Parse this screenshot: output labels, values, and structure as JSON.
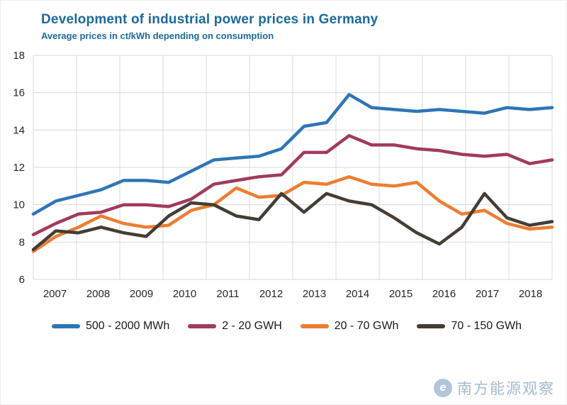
{
  "header": {
    "title": "Development of industrial power prices in Germany",
    "subtitle": "Average prices in ct/kWh depending on consumption"
  },
  "colors": {
    "title": "#1b6a9a",
    "grid": "#d9d9d9",
    "axis_text": "#262626"
  },
  "watermark": {
    "text": "南方能源观察"
  },
  "chart_data": {
    "type": "line",
    "title": "Development of industrial power prices in Germany",
    "subtitle": "Average prices in ct/kWh depending on consumption",
    "x_unit": "half-year intervals, 2007–2018",
    "x_tick_labels": [
      "2007",
      "2008",
      "2009",
      "2010",
      "2011",
      "2012",
      "2013",
      "2014",
      "2015",
      "2016",
      "2017",
      "2018"
    ],
    "ylim": [
      6,
      18
    ],
    "y_ticks": [
      6,
      8,
      10,
      12,
      14,
      16,
      18
    ],
    "grid": true,
    "legend_position": "bottom",
    "series": [
      {
        "name": "500 - 2000 MWh",
        "color": "#2e75b6",
        "values": [
          9.5,
          10.2,
          10.5,
          10.8,
          11.3,
          11.3,
          11.2,
          11.8,
          12.4,
          12.5,
          12.6,
          13.0,
          14.2,
          14.4,
          15.9,
          15.2,
          15.1,
          15.0,
          15.1,
          15.0,
          14.9,
          15.2,
          15.1,
          15.2
        ]
      },
      {
        "name": "2 - 20 GWH",
        "color": "#a13a5e",
        "values": [
          8.4,
          9.0,
          9.5,
          9.6,
          10.0,
          10.0,
          9.9,
          10.3,
          11.1,
          11.3,
          11.5,
          11.6,
          12.8,
          12.8,
          13.7,
          13.2,
          13.2,
          13.0,
          12.9,
          12.7,
          12.6,
          12.7,
          12.2,
          12.4
        ]
      },
      {
        "name": "20 - 70 GWh",
        "color": "#ed7d31",
        "values": [
          7.5,
          8.3,
          8.8,
          9.4,
          9.0,
          8.8,
          8.9,
          9.7,
          10.0,
          10.9,
          10.4,
          10.5,
          11.2,
          11.1,
          11.5,
          11.1,
          11.0,
          11.2,
          10.2,
          9.5,
          9.7,
          9.0,
          8.7,
          8.8
        ]
      },
      {
        "name": "70 - 150 GWh",
        "color": "#443d33",
        "values": [
          7.6,
          8.6,
          8.5,
          8.8,
          8.5,
          8.3,
          9.4,
          10.1,
          10.0,
          9.4,
          9.2,
          10.6,
          9.6,
          10.6,
          10.2,
          10.0,
          9.3,
          8.5,
          7.9,
          8.8,
          10.6,
          9.3,
          8.9,
          9.1
        ]
      }
    ]
  }
}
